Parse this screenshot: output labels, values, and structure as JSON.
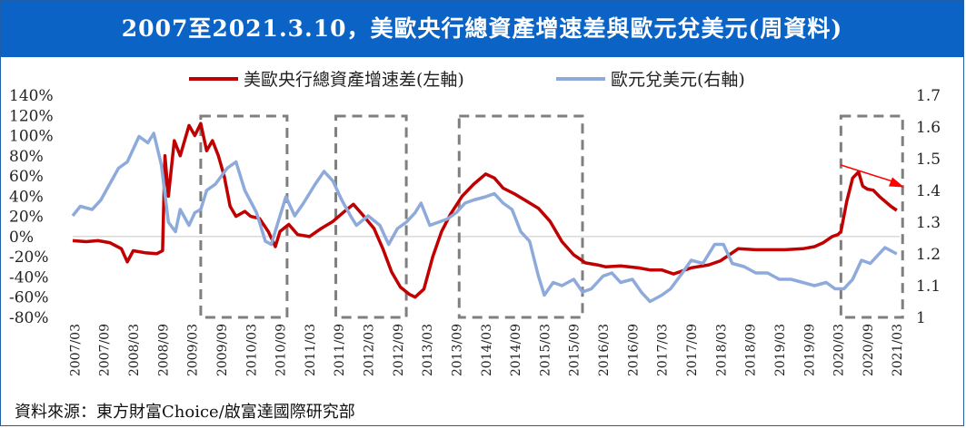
{
  "chart_data": {
    "type": "line",
    "title": "2007至2021.3.10，美歐央行總資產增速差與歐元兌美元(周資料)",
    "legend": [
      {
        "name": "美歐央行總資產增速差(左軸)",
        "color": "#c00000"
      },
      {
        "name": "歐元兌美元(右軸)",
        "color": "#8eaadb"
      }
    ],
    "legend_placement": "top",
    "y_left": {
      "min": -80,
      "max": 140,
      "step": 20,
      "unit": "%",
      "ticks": [
        "140%",
        "120%",
        "100%",
        "80%",
        "60%",
        "40%",
        "20%",
        "0%",
        "-20%",
        "-40%",
        "-60%",
        "-80%"
      ]
    },
    "y_right": {
      "min": 1.0,
      "max": 1.7,
      "ticks": [
        "1.7",
        "1.6",
        "1.5",
        "1.4",
        "1.3",
        "1.2",
        "1.1",
        "1"
      ]
    },
    "x_range": [
      2007.17,
      2021.2
    ],
    "x_ticks": [
      "2007/03",
      "2007/09",
      "2008/03",
      "2008/09",
      "2009/03",
      "2009/09",
      "2010/03",
      "2010/09",
      "2011/03",
      "2011/09",
      "2012/03",
      "2012/09",
      "2013/03",
      "2013/09",
      "2014/03",
      "2014/09",
      "2015/03",
      "2015/09",
      "2016/03",
      "2016/09",
      "2017/03",
      "2017/09",
      "2018/03",
      "2018/09",
      "2019/03",
      "2019/09",
      "2020/03",
      "2020/09",
      "2021/03"
    ],
    "series": [
      {
        "name": "美歐央行總資產增速差(左軸)",
        "axis": "left",
        "color": "#c00000",
        "points": [
          [
            2007.17,
            -4
          ],
          [
            2007.4,
            -5
          ],
          [
            2007.6,
            -4
          ],
          [
            2007.8,
            -6
          ],
          [
            2008.0,
            -12
          ],
          [
            2008.1,
            -25
          ],
          [
            2008.2,
            -14
          ],
          [
            2008.4,
            -16
          ],
          [
            2008.6,
            -17
          ],
          [
            2008.7,
            -14
          ],
          [
            2008.74,
            80
          ],
          [
            2008.8,
            40
          ],
          [
            2008.9,
            95
          ],
          [
            2009.0,
            80
          ],
          [
            2009.15,
            110
          ],
          [
            2009.25,
            100
          ],
          [
            2009.35,
            112
          ],
          [
            2009.45,
            85
          ],
          [
            2009.55,
            95
          ],
          [
            2009.65,
            80
          ],
          [
            2009.75,
            60
          ],
          [
            2009.85,
            30
          ],
          [
            2009.95,
            20
          ],
          [
            2010.1,
            25
          ],
          [
            2010.2,
            20
          ],
          [
            2010.35,
            18
          ],
          [
            2010.5,
            5
          ],
          [
            2010.62,
            -10
          ],
          [
            2010.7,
            5
          ],
          [
            2010.85,
            12
          ],
          [
            2011.0,
            2
          ],
          [
            2011.2,
            0
          ],
          [
            2011.4,
            8
          ],
          [
            2011.6,
            15
          ],
          [
            2011.8,
            25
          ],
          [
            2011.95,
            32
          ],
          [
            2012.1,
            22
          ],
          [
            2012.3,
            8
          ],
          [
            2012.45,
            -12
          ],
          [
            2012.6,
            -35
          ],
          [
            2012.75,
            -50
          ],
          [
            2012.9,
            -57
          ],
          [
            2013.0,
            -60
          ],
          [
            2013.15,
            -52
          ],
          [
            2013.3,
            -20
          ],
          [
            2013.45,
            5
          ],
          [
            2013.6,
            22
          ],
          [
            2013.8,
            40
          ],
          [
            2014.0,
            52
          ],
          [
            2014.2,
            62
          ],
          [
            2014.35,
            58
          ],
          [
            2014.5,
            48
          ],
          [
            2014.7,
            42
          ],
          [
            2014.9,
            35
          ],
          [
            2015.1,
            28
          ],
          [
            2015.3,
            15
          ],
          [
            2015.5,
            -5
          ],
          [
            2015.7,
            -18
          ],
          [
            2015.9,
            -26
          ],
          [
            2016.1,
            -28
          ],
          [
            2016.25,
            -30
          ],
          [
            2016.5,
            -29
          ],
          [
            2016.8,
            -31
          ],
          [
            2017.0,
            -33
          ],
          [
            2017.2,
            -33
          ],
          [
            2017.4,
            -37
          ],
          [
            2017.55,
            -34
          ],
          [
            2017.7,
            -31
          ],
          [
            2018.0,
            -28
          ],
          [
            2018.2,
            -24
          ],
          [
            2018.35,
            -18
          ],
          [
            2018.5,
            -12
          ],
          [
            2018.8,
            -13
          ],
          [
            2019.0,
            -13
          ],
          [
            2019.3,
            -13
          ],
          [
            2019.6,
            -12
          ],
          [
            2019.8,
            -10
          ],
          [
            2019.95,
            -6
          ],
          [
            2020.1,
            0
          ],
          [
            2020.2,
            2
          ],
          [
            2020.25,
            5
          ],
          [
            2020.35,
            35
          ],
          [
            2020.45,
            58
          ],
          [
            2020.55,
            64
          ],
          [
            2020.62,
            50
          ],
          [
            2020.7,
            47
          ],
          [
            2020.8,
            46
          ],
          [
            2020.9,
            40
          ],
          [
            2021.0,
            35
          ],
          [
            2021.1,
            30
          ],
          [
            2021.2,
            26
          ]
        ]
      },
      {
        "name": "歐元兌美元(右軸)",
        "axis": "right",
        "color": "#8eaadb",
        "points": [
          [
            2007.17,
            1.32
          ],
          [
            2007.3,
            1.35
          ],
          [
            2007.5,
            1.34
          ],
          [
            2007.65,
            1.37
          ],
          [
            2007.8,
            1.42
          ],
          [
            2007.95,
            1.47
          ],
          [
            2008.1,
            1.49
          ],
          [
            2008.3,
            1.57
          ],
          [
            2008.45,
            1.55
          ],
          [
            2008.55,
            1.58
          ],
          [
            2008.68,
            1.48
          ],
          [
            2008.8,
            1.3
          ],
          [
            2008.92,
            1.27
          ],
          [
            2009.0,
            1.34
          ],
          [
            2009.15,
            1.29
          ],
          [
            2009.25,
            1.33
          ],
          [
            2009.35,
            1.34
          ],
          [
            2009.45,
            1.4
          ],
          [
            2009.6,
            1.42
          ],
          [
            2009.8,
            1.47
          ],
          [
            2009.95,
            1.49
          ],
          [
            2010.1,
            1.4
          ],
          [
            2010.3,
            1.33
          ],
          [
            2010.45,
            1.24
          ],
          [
            2010.55,
            1.23
          ],
          [
            2010.65,
            1.29
          ],
          [
            2010.8,
            1.38
          ],
          [
            2010.95,
            1.32
          ],
          [
            2011.1,
            1.36
          ],
          [
            2011.3,
            1.42
          ],
          [
            2011.45,
            1.46
          ],
          [
            2011.6,
            1.43
          ],
          [
            2011.75,
            1.37
          ],
          [
            2011.9,
            1.32
          ],
          [
            2012.0,
            1.29
          ],
          [
            2012.2,
            1.32
          ],
          [
            2012.4,
            1.29
          ],
          [
            2012.55,
            1.23
          ],
          [
            2012.7,
            1.28
          ],
          [
            2012.85,
            1.3
          ],
          [
            2013.0,
            1.33
          ],
          [
            2013.1,
            1.36
          ],
          [
            2013.25,
            1.29
          ],
          [
            2013.4,
            1.3
          ],
          [
            2013.55,
            1.31
          ],
          [
            2013.7,
            1.33
          ],
          [
            2013.85,
            1.36
          ],
          [
            2014.0,
            1.37
          ],
          [
            2014.2,
            1.38
          ],
          [
            2014.35,
            1.39
          ],
          [
            2014.5,
            1.36
          ],
          [
            2014.65,
            1.34
          ],
          [
            2014.8,
            1.27
          ],
          [
            2014.95,
            1.24
          ],
          [
            2015.1,
            1.13
          ],
          [
            2015.2,
            1.07
          ],
          [
            2015.35,
            1.11
          ],
          [
            2015.5,
            1.1
          ],
          [
            2015.7,
            1.12
          ],
          [
            2015.85,
            1.08
          ],
          [
            2016.0,
            1.09
          ],
          [
            2016.2,
            1.13
          ],
          [
            2016.35,
            1.14
          ],
          [
            2016.5,
            1.11
          ],
          [
            2016.7,
            1.12
          ],
          [
            2016.85,
            1.08
          ],
          [
            2017.0,
            1.05
          ],
          [
            2017.2,
            1.07
          ],
          [
            2017.35,
            1.09
          ],
          [
            2017.55,
            1.14
          ],
          [
            2017.7,
            1.18
          ],
          [
            2017.9,
            1.17
          ],
          [
            2018.1,
            1.23
          ],
          [
            2018.25,
            1.23
          ],
          [
            2018.4,
            1.17
          ],
          [
            2018.6,
            1.16
          ],
          [
            2018.8,
            1.14
          ],
          [
            2019.0,
            1.14
          ],
          [
            2019.2,
            1.12
          ],
          [
            2019.4,
            1.12
          ],
          [
            2019.6,
            1.11
          ],
          [
            2019.8,
            1.1
          ],
          [
            2020.0,
            1.11
          ],
          [
            2020.15,
            1.09
          ],
          [
            2020.3,
            1.09
          ],
          [
            2020.45,
            1.12
          ],
          [
            2020.6,
            1.18
          ],
          [
            2020.75,
            1.17
          ],
          [
            2020.85,
            1.19
          ],
          [
            2021.0,
            1.22
          ],
          [
            2021.1,
            1.21
          ],
          [
            2021.2,
            1.2
          ]
        ]
      }
    ],
    "highlight_boxes": [
      [
        2009.35,
        2010.82
      ],
      [
        2011.65,
        2012.85
      ],
      [
        2013.75,
        2015.85
      ],
      [
        2020.25,
        2021.3
      ]
    ],
    "trend_arrow": {
      "from": [
        2020.25,
        1.48
      ],
      "to": [
        2021.3,
        1.41
      ],
      "color": "#ff0000"
    },
    "zero_line": true,
    "grid": false
  },
  "source": "資料來源：東方財富Choice/啟富達國際研究部"
}
